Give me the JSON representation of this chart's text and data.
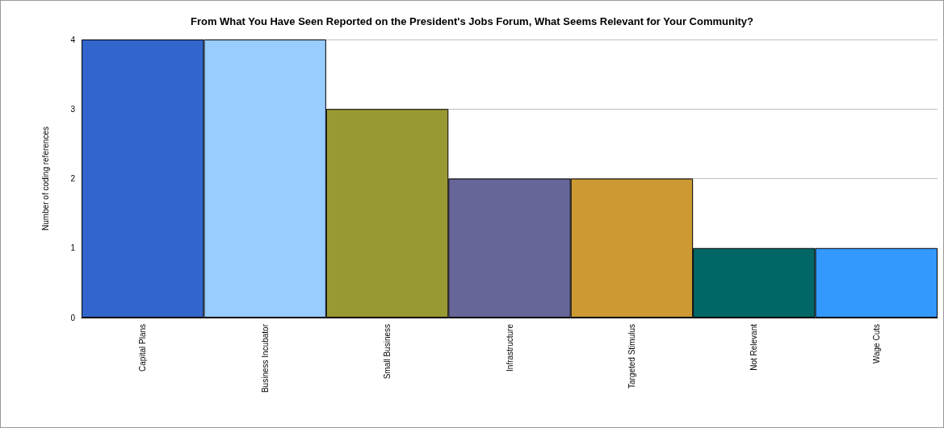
{
  "chart_data": {
    "type": "bar",
    "title": "From What You Have Seen Reported on the President's Jobs Forum, What Seems Relevant for Your Community?",
    "ylabel": "Number of coding references",
    "categories": [
      "Capital Plans",
      "Business Incubator",
      "Small Business",
      "Infrastructure",
      "Targeted Stimulus",
      "Not Relevant",
      "Wage Cuts"
    ],
    "values": [
      4,
      4,
      3,
      2,
      2,
      1,
      1
    ],
    "colors": [
      "#3366cc",
      "#99ccff",
      "#999933",
      "#666699",
      "#cc9933",
      "#006666",
      "#3399ff"
    ],
    "ylim": [
      0,
      4
    ],
    "yticks": [
      0,
      1,
      2,
      3,
      4
    ],
    "grid": "y"
  }
}
